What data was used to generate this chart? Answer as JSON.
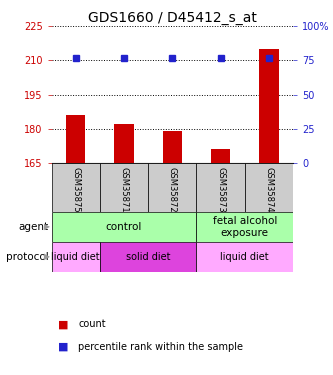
{
  "title": "GDS1660 / D45412_s_at",
  "samples": [
    "GSM35875",
    "GSM35871",
    "GSM35872",
    "GSM35873",
    "GSM35874"
  ],
  "count_values": [
    186,
    182,
    179,
    171,
    215
  ],
  "percentile_values": [
    77,
    77,
    77,
    77,
    77
  ],
  "ylim_left": [
    165,
    225
  ],
  "yticks_left": [
    165,
    180,
    195,
    210,
    225
  ],
  "ylim_right": [
    0,
    100
  ],
  "yticks_right": [
    0,
    25,
    50,
    75,
    100
  ],
  "bar_color": "#cc0000",
  "dot_color": "#2222cc",
  "agent_labels": [
    {
      "text": "control",
      "start": 0,
      "end": 3,
      "color": "#aaffaa"
    },
    {
      "text": "fetal alcohol\nexposure",
      "start": 3,
      "end": 5,
      "color": "#aaffaa"
    }
  ],
  "protocol_labels": [
    {
      "text": "liquid diet",
      "start": 0,
      "end": 1,
      "color": "#ffaaff"
    },
    {
      "text": "solid diet",
      "start": 1,
      "end": 3,
      "color": "#dd44dd"
    },
    {
      "text": "liquid diet",
      "start": 3,
      "end": 5,
      "color": "#ffaaff"
    }
  ],
  "agent_row_label": "agent",
  "protocol_row_label": "protocol",
  "legend_items": [
    {
      "label": "count",
      "color": "#cc0000"
    },
    {
      "label": "percentile rank within the sample",
      "color": "#2222cc"
    }
  ],
  "sample_area_bg": "#cccccc",
  "title_fontsize": 10,
  "axis_label_color_left": "#cc0000",
  "axis_label_color_right": "#2222cc",
  "arrow_color": "#999999"
}
